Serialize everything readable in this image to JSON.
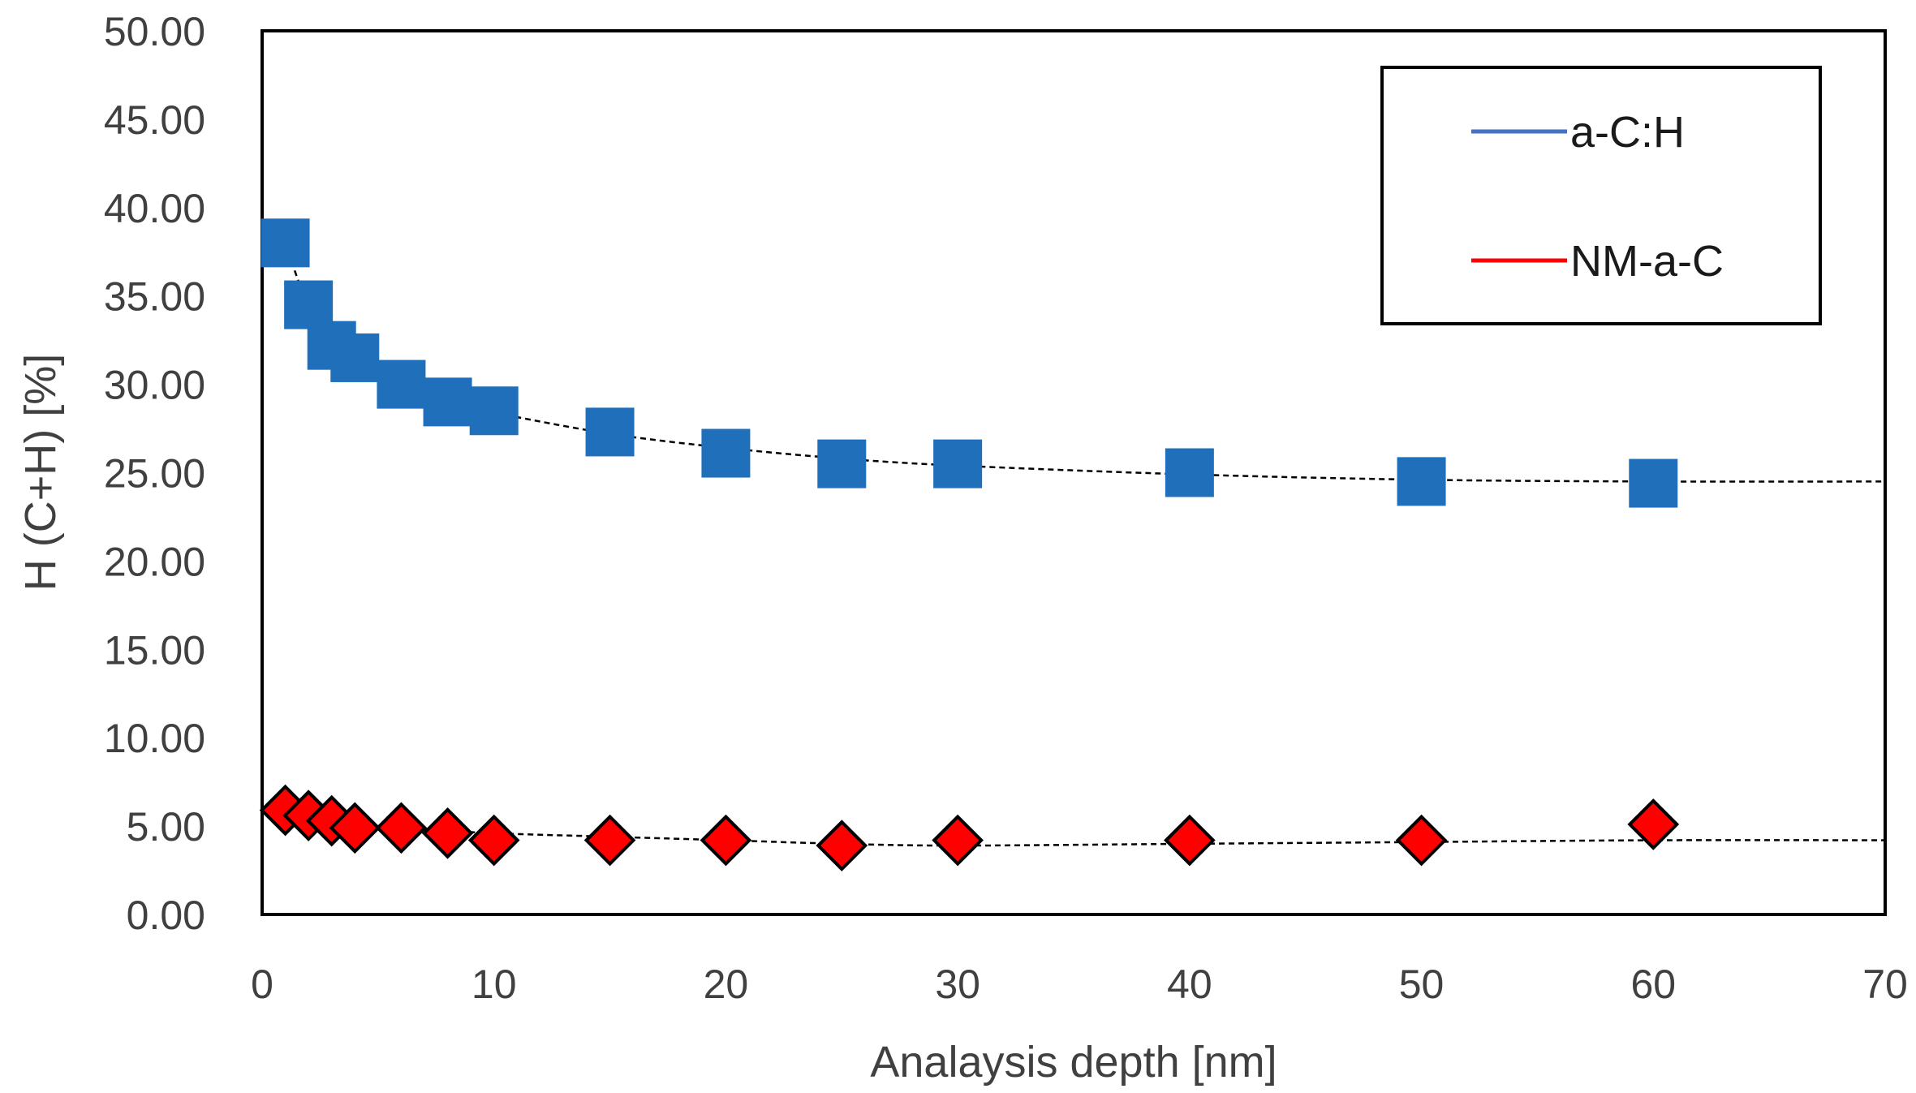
{
  "chart_data": {
    "type": "scatter",
    "title": "",
    "xlabel": "Analaysis depth [nm]",
    "ylabel": "H (C+H) [%]",
    "xlim": [
      0,
      70
    ],
    "ylim": [
      0,
      50
    ],
    "x_ticks": [
      "0",
      "10",
      "20",
      "30",
      "40",
      "50",
      "60",
      "70"
    ],
    "y_ticks": [
      "0.00",
      "5.00",
      "10.00",
      "15.00",
      "20.00",
      "25.00",
      "30.00",
      "35.00",
      "40.00",
      "45.00",
      "50.00"
    ],
    "grid": false,
    "legend_position": "top-right",
    "series": [
      {
        "name": "a-C:H",
        "color": "#1f6fba",
        "legend_color": "#4472c4",
        "marker": "square",
        "x": [
          1,
          2,
          3,
          4,
          6,
          8,
          10,
          15,
          20,
          25,
          30,
          40,
          50,
          60
        ],
        "y": [
          38.0,
          34.5,
          32.2,
          31.5,
          30.0,
          29.0,
          28.5,
          27.3,
          26.1,
          25.5,
          25.5,
          25.0,
          24.5,
          24.4
        ],
        "trend": [
          [
            1,
            38.0
          ],
          [
            2,
            34.4
          ],
          [
            3,
            32.6
          ],
          [
            4,
            31.3
          ],
          [
            6,
            29.8
          ],
          [
            8,
            29.0
          ],
          [
            10,
            28.4
          ],
          [
            15,
            27.2
          ],
          [
            20,
            26.4
          ],
          [
            25,
            25.8
          ],
          [
            30,
            25.4
          ],
          [
            40,
            24.9
          ],
          [
            50,
            24.6
          ],
          [
            60,
            24.5
          ],
          [
            70,
            24.5
          ]
        ]
      },
      {
        "name": "NM-a-C",
        "color": "#ff0000",
        "legend_color": "#ff0000",
        "marker": "diamond",
        "x": [
          1,
          2,
          3,
          4,
          6,
          8,
          10,
          15,
          20,
          25,
          30,
          40,
          50,
          60
        ],
        "y": [
          5.9,
          5.6,
          5.3,
          4.9,
          4.9,
          4.6,
          4.2,
          4.2,
          4.2,
          3.9,
          4.2,
          4.2,
          4.2,
          5.1
        ],
        "trend": [
          [
            1,
            5.7
          ],
          [
            3,
            5.3
          ],
          [
            6,
            4.9
          ],
          [
            10,
            4.6
          ],
          [
            15,
            4.4
          ],
          [
            20,
            4.2
          ],
          [
            25,
            4.0
          ],
          [
            30,
            3.9
          ],
          [
            40,
            4.0
          ],
          [
            50,
            4.1
          ],
          [
            60,
            4.2
          ],
          [
            70,
            4.2
          ]
        ]
      }
    ]
  }
}
